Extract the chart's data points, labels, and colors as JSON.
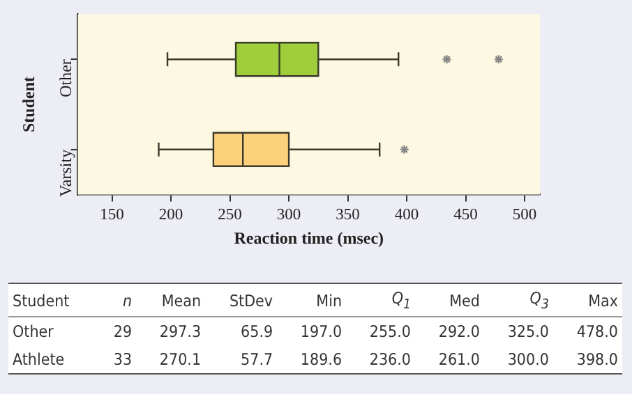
{
  "chart_data": {
    "type": "box",
    "orientation": "horizontal",
    "ylabel": "Student",
    "xlabel": "Reaction time (msec)",
    "categories": [
      "Other",
      "Varsity"
    ],
    "colors": [
      "#9fcd3c",
      "#fdd07c"
    ],
    "boxes": [
      {
        "low": 197.0,
        "q1": 255.0,
        "median": 292.0,
        "q3": 325.0,
        "high": 393,
        "outliers": [
          434,
          478.0
        ]
      },
      {
        "low": 189.6,
        "q1": 236.0,
        "median": 261.0,
        "q3": 300.0,
        "high": 377,
        "outliers": [
          398.0
        ]
      }
    ],
    "xlim": [
      121,
      513
    ],
    "xticks": [
      150,
      200,
      250,
      300,
      350,
      400,
      450,
      500
    ],
    "grid": false,
    "legend": false,
    "marker": "star",
    "annotations": [
      "Student",
      "n",
      "Mean",
      "StDev",
      "Min",
      "Q$_{1}$",
      "Med",
      "Q$_{3}$",
      "Max",
      "Other",
      "29",
      "297.3",
      "65.9",
      "197.0",
      "255.0",
      "292.0",
      "325.0",
      "478.0",
      "Athlete",
      "33",
      "270.1",
      "57.7",
      "189.6",
      "236.0",
      "261.0",
      "300.0",
      "398.0"
    ]
  }
}
